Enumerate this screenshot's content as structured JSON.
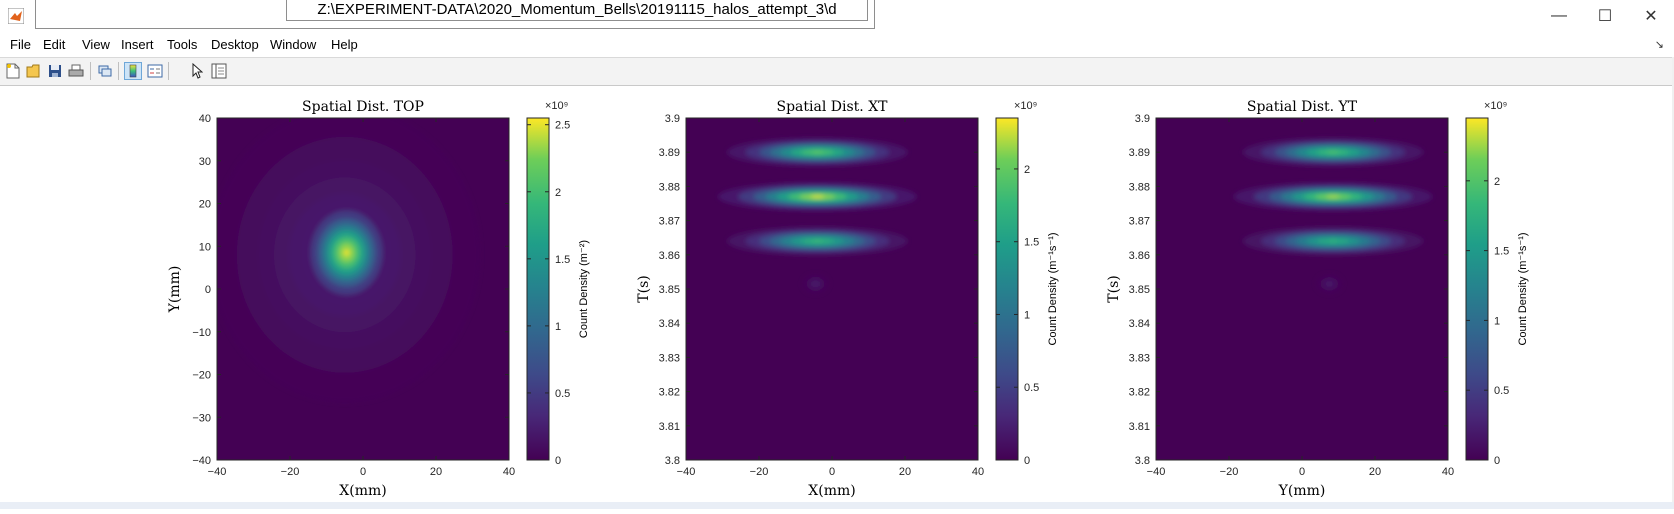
{
  "window": {
    "title": "Z:\\EXPERIMENT-DATA\\2020_Momentum_Bells\\20191115_halos_attempt_3\\d",
    "controls": {
      "minimize": "—",
      "maximize": "☐",
      "close": "✕"
    }
  },
  "menu": {
    "items": [
      "File",
      "Edit",
      "View",
      "Insert",
      "Tools",
      "Desktop",
      "Window",
      "Help"
    ]
  },
  "toolbar": {
    "icons": [
      "new-figure-icon",
      "open-file-icon",
      "save-icon",
      "print-icon",
      "link-icon",
      "colorbar-icon",
      "legend-icon",
      "pointer-icon",
      "property-inspector-icon"
    ]
  },
  "colormap": {
    "low": "#440154",
    "mid": "#21908d",
    "high": "#fde725"
  },
  "chart_data": [
    {
      "type": "heatmap",
      "title": "Spatial Dist. TOP",
      "xlabel": "X(mm)",
      "ylabel": "Y(mm)",
      "xlim": [
        -40,
        40
      ],
      "ylim": [
        -40,
        40
      ],
      "xticks": [
        "-40",
        "-20",
        "0",
        "20",
        "40"
      ],
      "yticks": [
        "-40",
        "-30",
        "-20",
        "-10",
        "0",
        "10",
        "20",
        "30",
        "40"
      ],
      "colorbar": {
        "label": "Count Density (m⁻²)",
        "exponent": "×10⁹",
        "max": 2.55,
        "ticks": [
          "0",
          "0.5",
          "1",
          "1.5",
          "2",
          "2.5"
        ]
      },
      "blobs": [
        {
          "x": -4.5,
          "y": 8.5,
          "peak": 2.5,
          "sx_data": 5,
          "sy_data": 5
        },
        {
          "x": -5,
          "y": 8,
          "peak": 0.3,
          "sx_data": 15,
          "sy_data": 14
        },
        {
          "x": 8,
          "y": -8,
          "peak": 0.25,
          "sx_data": 4,
          "sy_data": 6
        },
        {
          "x": -8,
          "y": -15,
          "peak": 0.15,
          "sx_data": 1,
          "sy_data": 2
        }
      ]
    },
    {
      "type": "heatmap",
      "title": "Spatial Dist. XT",
      "xlabel": "X(mm)",
      "ylabel": "T(s)",
      "xlim": [
        -40,
        40
      ],
      "ylim": [
        3.8,
        3.9
      ],
      "xticks": [
        "-40",
        "-20",
        "0",
        "20",
        "40"
      ],
      "yticks": [
        "3.8",
        "3.81",
        "3.82",
        "3.83",
        "3.84",
        "3.85",
        "3.86",
        "3.87",
        "3.88",
        "3.89",
        "3.9"
      ],
      "colorbar": {
        "label": "Count Density (m⁻¹s⁻¹)",
        "exponent": "×10⁹",
        "max": 2.35,
        "ticks": [
          "0",
          "0.5",
          "1",
          "1.5",
          "2"
        ]
      },
      "blobs": [
        {
          "x": -4,
          "y": 3.89,
          "peak": 2.0,
          "sx_data": 10,
          "sy_data": 0.0017
        },
        {
          "x": -4,
          "y": 3.877,
          "peak": 2.3,
          "sx_data": 11,
          "sy_data": 0.0017
        },
        {
          "x": -4,
          "y": 3.864,
          "peak": 1.8,
          "sx_data": 10,
          "sy_data": 0.0017
        },
        {
          "x": -4.5,
          "y": 3.8515,
          "peak": 0.2,
          "sx_data": 1.5,
          "sy_data": 0.0012
        }
      ]
    },
    {
      "type": "heatmap",
      "title": "Spatial Dist. YT",
      "xlabel": "Y(mm)",
      "ylabel": "T(s)",
      "xlim": [
        -40,
        40
      ],
      "ylim": [
        3.8,
        3.9
      ],
      "xticks": [
        "-40",
        "-20",
        "0",
        "20",
        "40"
      ],
      "yticks": [
        "3.8",
        "3.81",
        "3.82",
        "3.83",
        "3.84",
        "3.85",
        "3.86",
        "3.87",
        "3.88",
        "3.89",
        "3.9"
      ],
      "colorbar": {
        "label": "Count Density (m⁻¹s⁻¹)",
        "exponent": "×10⁹",
        "max": 2.45,
        "ticks": [
          "0",
          "0.5",
          "1",
          "1.5",
          "2"
        ]
      },
      "blobs": [
        {
          "x": 8.5,
          "y": 3.89,
          "peak": 2.0,
          "sx_data": 10,
          "sy_data": 0.0017
        },
        {
          "x": 8.5,
          "y": 3.877,
          "peak": 2.3,
          "sx_data": 11,
          "sy_data": 0.0017
        },
        {
          "x": 8.5,
          "y": 3.864,
          "peak": 1.8,
          "sx_data": 10,
          "sy_data": 0.0017
        },
        {
          "x": 7.5,
          "y": 3.8515,
          "peak": 0.2,
          "sx_data": 1.5,
          "sy_data": 0.0012
        }
      ]
    }
  ]
}
